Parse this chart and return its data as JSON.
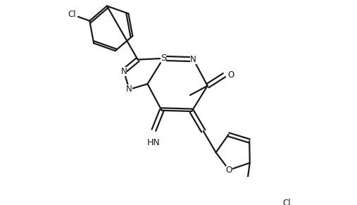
{
  "bg_color": "#ffffff",
  "line_color": "#1a1a1a",
  "line_width": 1.6,
  "figsize": [
    5.07,
    2.91
  ],
  "dpi": 100,
  "xlim": [
    0,
    10.2
  ],
  "ylim": [
    0,
    5.82
  ]
}
